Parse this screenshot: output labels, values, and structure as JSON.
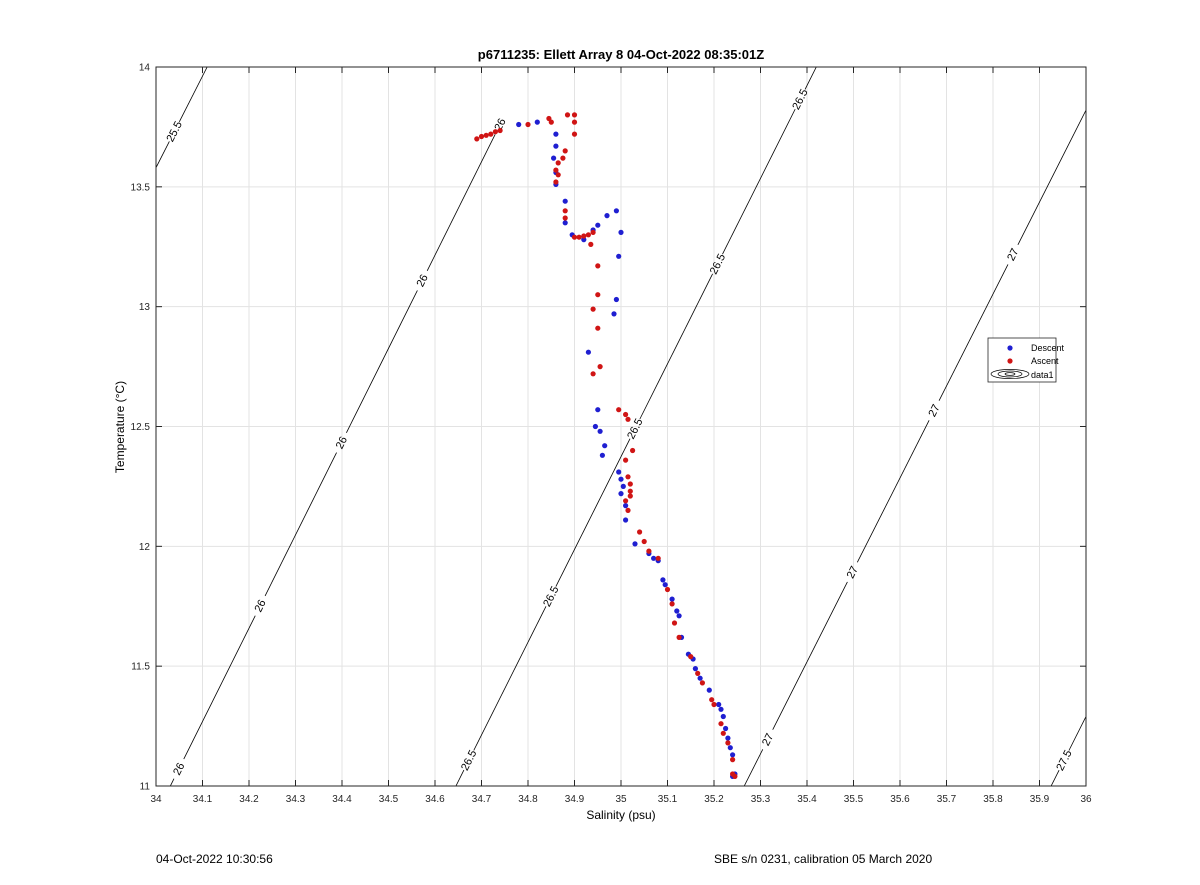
{
  "footer": {
    "timestamp": "04-Oct-2022 10:30:56",
    "instrument": "SBE s/n 0231, calibration 05 March 2020"
  },
  "chart_data": {
    "type": "scatter",
    "title": "p6711235: Ellett Array 8 04-Oct-2022 08:35:01Z",
    "xlabel": "Salinity (psu)",
    "ylabel": "Temperature (°C)",
    "xlim": [
      34,
      36
    ],
    "ylim": [
      11,
      14
    ],
    "xticks": [
      "34",
      "34.1",
      "34.2",
      "34.3",
      "34.4",
      "34.5",
      "34.6",
      "34.7",
      "34.8",
      "34.9",
      "35",
      "35.1",
      "35.2",
      "35.3",
      "35.4",
      "35.5",
      "35.6",
      "35.7",
      "35.8",
      "35.9",
      "36"
    ],
    "yticks": [
      "11",
      "11.5",
      "12",
      "12.5",
      "13",
      "13.5",
      "14"
    ],
    "grid": true,
    "legend_placement": "right",
    "legend": [
      "Descent",
      "Ascent",
      "data1"
    ],
    "density_contours": [
      {
        "label": "25.5",
        "points": [
          [
            34.0,
            13.58
          ],
          [
            34.11,
            14.0
          ]
        ],
        "label_at": [
          34.04,
          13.73
        ]
      },
      {
        "label": "26",
        "points": [
          [
            34.0,
            10.88
          ],
          [
            34.74,
            13.76
          ]
        ],
        "label_pos": [
          [
            34.03,
            11.09
          ],
          [
            34.195,
            11.78
          ],
          [
            34.36,
            12.47
          ],
          [
            34.53,
            13.15
          ],
          [
            34.71,
            13.84
          ]
        ]
      },
      {
        "label": "26.5",
        "points": [
          [
            34.645,
            11.0
          ],
          [
            35.42,
            14.0
          ]
        ],
        "label_pos": [
          [
            34.67,
            11.11
          ],
          [
            34.84,
            11.8
          ],
          [
            35.02,
            12.5
          ],
          [
            35.185,
            13.2
          ],
          [
            35.37,
            13.88
          ]
        ]
      },
      {
        "label": "27",
        "points": [
          [
            35.265,
            11.0
          ],
          [
            36.0,
            13.82
          ]
        ],
        "label_pos": [
          [
            35.33,
            11.18
          ],
          [
            35.51,
            11.88
          ],
          [
            35.68,
            12.56
          ],
          [
            35.84,
            13.22
          ]
        ]
      },
      {
        "label": "27.5",
        "points": [
          [
            35.925,
            11.0
          ],
          [
            36.0,
            11.29
          ]
        ],
        "label_at": [
          35.96,
          11.1
        ]
      }
    ],
    "series": [
      {
        "name": "Descent",
        "color": "#1f1fd1",
        "points": [
          [
            34.78,
            13.76
          ],
          [
            34.82,
            13.77
          ],
          [
            34.86,
            13.72
          ],
          [
            34.86,
            13.67
          ],
          [
            34.855,
            13.62
          ],
          [
            34.86,
            13.56
          ],
          [
            34.86,
            13.51
          ],
          [
            34.88,
            13.44
          ],
          [
            34.88,
            13.35
          ],
          [
            34.895,
            13.3
          ],
          [
            34.92,
            13.28
          ],
          [
            34.94,
            13.32
          ],
          [
            34.95,
            13.34
          ],
          [
            34.97,
            13.38
          ],
          [
            34.99,
            13.4
          ],
          [
            35.0,
            13.31
          ],
          [
            34.995,
            13.21
          ],
          [
            34.99,
            13.03
          ],
          [
            34.985,
            12.97
          ],
          [
            34.93,
            12.81
          ],
          [
            34.95,
            12.57
          ],
          [
            34.945,
            12.5
          ],
          [
            34.955,
            12.48
          ],
          [
            34.965,
            12.42
          ],
          [
            34.96,
            12.38
          ],
          [
            34.995,
            12.31
          ],
          [
            35.0,
            12.28
          ],
          [
            35.005,
            12.25
          ],
          [
            35.0,
            12.22
          ],
          [
            35.01,
            12.17
          ],
          [
            35.01,
            12.11
          ],
          [
            35.03,
            12.01
          ],
          [
            35.06,
            11.97
          ],
          [
            35.07,
            11.95
          ],
          [
            35.08,
            11.94
          ],
          [
            35.09,
            11.86
          ],
          [
            35.095,
            11.84
          ],
          [
            35.11,
            11.78
          ],
          [
            35.12,
            11.73
          ],
          [
            35.125,
            11.71
          ],
          [
            35.13,
            11.62
          ],
          [
            35.145,
            11.55
          ],
          [
            35.155,
            11.53
          ],
          [
            35.16,
            11.49
          ],
          [
            35.17,
            11.45
          ],
          [
            35.19,
            11.4
          ],
          [
            35.21,
            11.34
          ],
          [
            35.215,
            11.32
          ],
          [
            35.22,
            11.29
          ],
          [
            35.225,
            11.24
          ],
          [
            35.23,
            11.2
          ],
          [
            35.235,
            11.16
          ],
          [
            35.24,
            11.13
          ],
          [
            35.245,
            11.05
          ],
          [
            35.24,
            11.04
          ]
        ]
      },
      {
        "name": "Ascent",
        "color": "#d01515",
        "points": [
          [
            34.69,
            13.7
          ],
          [
            34.7,
            13.71
          ],
          [
            34.71,
            13.715
          ],
          [
            34.72,
            13.72
          ],
          [
            34.73,
            13.73
          ],
          [
            34.74,
            13.735
          ],
          [
            34.8,
            13.76
          ],
          [
            34.845,
            13.785
          ],
          [
            34.85,
            13.77
          ],
          [
            34.885,
            13.8
          ],
          [
            34.9,
            13.8
          ],
          [
            34.9,
            13.77
          ],
          [
            34.9,
            13.72
          ],
          [
            34.88,
            13.65
          ],
          [
            34.875,
            13.62
          ],
          [
            34.865,
            13.6
          ],
          [
            34.86,
            13.57
          ],
          [
            34.865,
            13.55
          ],
          [
            34.86,
            13.52
          ],
          [
            34.88,
            13.4
          ],
          [
            34.88,
            13.37
          ],
          [
            34.9,
            13.29
          ],
          [
            34.91,
            13.29
          ],
          [
            34.92,
            13.295
          ],
          [
            34.93,
            13.3
          ],
          [
            34.94,
            13.31
          ],
          [
            34.935,
            13.26
          ],
          [
            34.95,
            13.17
          ],
          [
            34.95,
            13.05
          ],
          [
            34.94,
            12.99
          ],
          [
            34.95,
            12.91
          ],
          [
            34.955,
            12.75
          ],
          [
            34.94,
            12.72
          ],
          [
            34.995,
            12.57
          ],
          [
            35.01,
            12.55
          ],
          [
            35.015,
            12.53
          ],
          [
            35.025,
            12.4
          ],
          [
            35.01,
            12.36
          ],
          [
            35.015,
            12.29
          ],
          [
            35.02,
            12.26
          ],
          [
            35.02,
            12.23
          ],
          [
            35.02,
            12.21
          ],
          [
            35.01,
            12.19
          ],
          [
            35.015,
            12.15
          ],
          [
            35.04,
            12.06
          ],
          [
            35.05,
            12.02
          ],
          [
            35.06,
            11.98
          ],
          [
            35.08,
            11.95
          ],
          [
            35.1,
            11.82
          ],
          [
            35.11,
            11.76
          ],
          [
            35.115,
            11.68
          ],
          [
            35.125,
            11.62
          ],
          [
            35.15,
            11.54
          ],
          [
            35.165,
            11.47
          ],
          [
            35.175,
            11.43
          ],
          [
            35.195,
            11.36
          ],
          [
            35.2,
            11.34
          ],
          [
            35.215,
            11.26
          ],
          [
            35.22,
            11.22
          ],
          [
            35.23,
            11.18
          ],
          [
            35.24,
            11.11
          ],
          [
            35.24,
            11.05
          ],
          [
            35.245,
            11.04
          ]
        ]
      }
    ]
  }
}
